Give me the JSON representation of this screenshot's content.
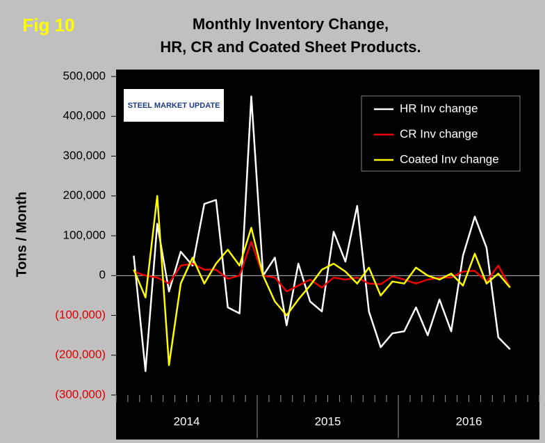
{
  "chart_data": {
    "type": "line",
    "title": "Monthly Inventory Change,",
    "subtitle": "HR, CR and Coated Sheet  Products.",
    "figure_label": "Fig 10",
    "logo": "STEEL MARKET UPDATE",
    "y_label": "Tons / Month",
    "categories": [
      null,
      null,
      null,
      null,
      null,
      null,
      null,
      null,
      null,
      null,
      null,
      null,
      null,
      null,
      null,
      null,
      null,
      null,
      null,
      null,
      null,
      null,
      null,
      null,
      null,
      null,
      null,
      null,
      null,
      null,
      null,
      null,
      null,
      null,
      null,
      null
    ],
    "year_labels": [
      "2014",
      "2015",
      "2016"
    ],
    "series": [
      {
        "name": "HR Inv change",
        "color": "#ffffff",
        "values": [
          null,
          50000,
          -240000,
          130000,
          -40000,
          60000,
          25000,
          180000,
          190000,
          -80000,
          -95000,
          450000,
          0,
          45000,
          -125000,
          30000,
          -65000,
          -90000,
          110000,
          35000,
          175000,
          -90000,
          -180000,
          -145000,
          -140000,
          -80000,
          -150000,
          -60000,
          -140000,
          50000,
          148000,
          70000,
          -155000,
          -185000,
          null,
          null
        ]
      },
      {
        "name": "CR Inv change",
        "color": "#ee0000",
        "values": [
          null,
          10000,
          0,
          -5000,
          -20000,
          25000,
          30000,
          15000,
          15000,
          -8000,
          0,
          85000,
          0,
          -5000,
          -40000,
          -25000,
          -10000,
          -30000,
          -5000,
          -10000,
          -5000,
          -20000,
          -22000,
          -2000,
          -10000,
          -20000,
          -10000,
          -5000,
          -5000,
          10000,
          12000,
          -15000,
          25000,
          -30000,
          null,
          null
        ]
      },
      {
        "name": "Coated Inv change",
        "color": "#ffff00",
        "values": [
          null,
          15000,
          -55000,
          200000,
          -225000,
          -20000,
          45000,
          -20000,
          30000,
          65000,
          25000,
          120000,
          0,
          -65000,
          -100000,
          -60000,
          -25000,
          15000,
          30000,
          10000,
          -20000,
          20000,
          -50000,
          -15000,
          -20000,
          20000,
          0,
          -10000,
          5000,
          -25000,
          55000,
          -20000,
          5000,
          -30000,
          null,
          null
        ]
      }
    ],
    "ylim": [
      -300000,
      500000
    ],
    "yticks": [
      {
        "value": -300000,
        "label": "(300,000)"
      },
      {
        "value": -200000,
        "label": "(200,000)"
      },
      {
        "value": -100000,
        "label": "(100,000)"
      },
      0,
      {
        "value": 100000,
        "label": "100,000"
      },
      {
        "value": 200000,
        "label": "200,000"
      },
      {
        "value": 300000,
        "label": "300,000"
      },
      {
        "value": 400000,
        "label": "400,000"
      },
      {
        "value": 500000,
        "label": "500,000"
      }
    ],
    "negative_tick_color": "#dd0000",
    "legend": "top-right"
  }
}
